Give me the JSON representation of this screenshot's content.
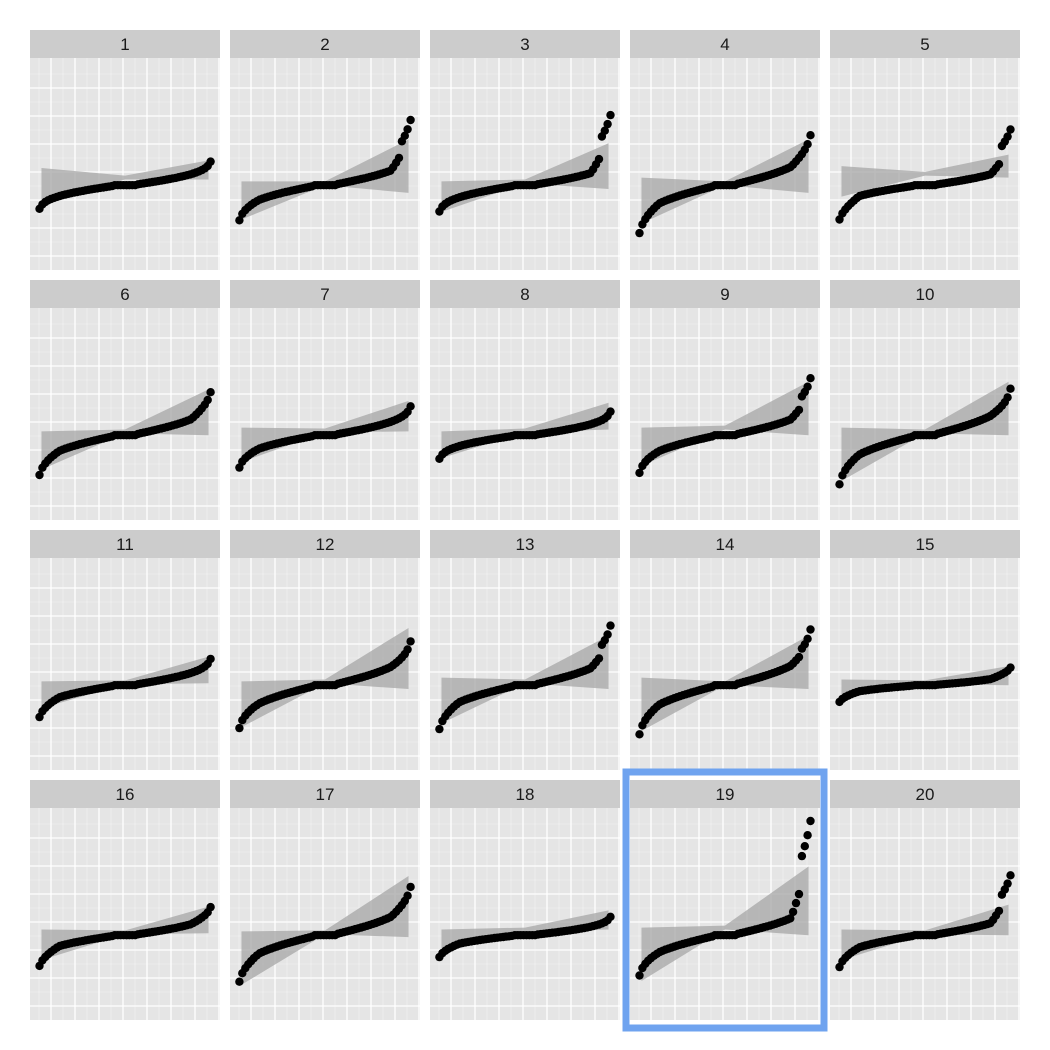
{
  "highlight_color": "#6fa3ef",
  "panel_background": "#e5e5e5",
  "strip_background": "#cccccc",
  "grid_color": "#ffffff",
  "point_color": "#000000",
  "band_color": "#a6a6a6",
  "highlighted_panel": "19",
  "chart_data": [
    {
      "panel": "1",
      "type": "scatter",
      "pattern": "qq",
      "slope": 0.45,
      "tail_lo": 0,
      "tail_hi": 0,
      "jump_hi": 0,
      "band_center": [
        0,
        0.08
      ],
      "band_half": [
        0.09,
        0.05
      ]
    },
    {
      "panel": "2",
      "type": "scatter",
      "pattern": "qq",
      "slope": 0.6,
      "tail_lo": 0.05,
      "tail_hi": 0.25,
      "jump_hi": 0.12,
      "band_center": [
        -0.08,
        0.1
      ],
      "band_half": [
        0.1,
        0.14
      ]
    },
    {
      "panel": "3",
      "type": "scatter",
      "pattern": "qq",
      "slope": 0.5,
      "tail_lo": 0,
      "tail_hi": 0.3,
      "jump_hi": 0.18,
      "band_center": [
        -0.06,
        0.1
      ],
      "band_half": [
        0.08,
        0.12
      ]
    },
    {
      "panel": "4",
      "type": "scatter",
      "pattern": "qq",
      "slope": 0.75,
      "tail_lo": 0.12,
      "tail_hi": 0.12,
      "jump_hi": 0,
      "band_center": [
        -0.08,
        0.1
      ],
      "band_half": [
        0.12,
        0.14
      ]
    },
    {
      "panel": "5",
      "type": "scatter",
      "pattern": "qq",
      "slope": 0.45,
      "tail_lo": 0.15,
      "tail_hi": 0.2,
      "jump_hi": 0.15,
      "band_center": [
        0.02,
        0.1
      ],
      "band_half": [
        0.08,
        0.06
      ]
    },
    {
      "panel": "6",
      "type": "scatter",
      "pattern": "qq",
      "slope": 0.65,
      "tail_lo": 0.08,
      "tail_hi": 0.1,
      "jump_hi": 0,
      "band_center": [
        -0.08,
        0.12
      ],
      "band_half": [
        0.1,
        0.12
      ]
    },
    {
      "panel": "7",
      "type": "scatter",
      "pattern": "qq",
      "slope": 0.55,
      "tail_lo": 0.05,
      "tail_hi": 0,
      "jump_hi": 0,
      "band_center": [
        -0.05,
        0.1
      ],
      "band_half": [
        0.09,
        0.08
      ]
    },
    {
      "panel": "8",
      "type": "scatter",
      "pattern": "qq",
      "slope": 0.45,
      "tail_lo": 0,
      "tail_hi": 0,
      "jump_hi": 0,
      "band_center": [
        -0.05,
        0.1
      ],
      "band_half": [
        0.07,
        0.07
      ]
    },
    {
      "panel": "9",
      "type": "scatter",
      "pattern": "qq",
      "slope": 0.65,
      "tail_lo": 0.05,
      "tail_hi": 0.15,
      "jump_hi": 0.1,
      "band_center": [
        -0.06,
        0.14
      ],
      "band_half": [
        0.1,
        0.14
      ]
    },
    {
      "panel": "10",
      "type": "scatter",
      "pattern": "qq",
      "slope": 0.8,
      "tail_lo": 0.1,
      "tail_hi": 0.05,
      "jump_hi": 0,
      "band_center": [
        -0.1,
        0.14
      ],
      "band_half": [
        0.14,
        0.14
      ]
    },
    {
      "panel": "11",
      "type": "scatter",
      "pattern": "qq",
      "slope": 0.5,
      "tail_lo": 0.08,
      "tail_hi": 0,
      "jump_hi": 0,
      "band_center": [
        -0.05,
        0.08
      ],
      "band_half": [
        0.07,
        0.07
      ]
    },
    {
      "panel": "12",
      "type": "scatter",
      "pattern": "qq",
      "slope": 0.75,
      "tail_lo": 0.05,
      "tail_hi": 0.05,
      "jump_hi": 0,
      "band_center": [
        -0.1,
        0.14
      ],
      "band_half": [
        0.12,
        0.16
      ]
    },
    {
      "panel": "13",
      "type": "scatter",
      "pattern": "qq",
      "slope": 0.7,
      "tail_lo": 0.1,
      "tail_hi": 0.15,
      "jump_hi": 0.1,
      "band_center": [
        -0.08,
        0.12
      ],
      "band_half": [
        0.12,
        0.14
      ]
    },
    {
      "panel": "14",
      "type": "scatter",
      "pattern": "qq",
      "slope": 0.8,
      "tail_lo": 0.1,
      "tail_hi": 0.1,
      "jump_hi": 0.05,
      "band_center": [
        -0.1,
        0.12
      ],
      "band_half": [
        0.14,
        0.14
      ]
    },
    {
      "panel": "15",
      "type": "scatter",
      "pattern": "qq",
      "slope": 0.25,
      "tail_lo": 0.05,
      "tail_hi": 0.05,
      "jump_hi": 0,
      "band_center": [
        -0.02,
        0.05
      ],
      "band_half": [
        0.05,
        0.05
      ]
    },
    {
      "panel": "16",
      "type": "scatter",
      "pattern": "qq",
      "slope": 0.45,
      "tail_lo": 0.1,
      "tail_hi": 0.05,
      "jump_hi": 0,
      "band_center": [
        -0.05,
        0.08
      ],
      "band_half": [
        0.08,
        0.07
      ]
    },
    {
      "panel": "17",
      "type": "scatter",
      "pattern": "qq",
      "slope": 0.75,
      "tail_lo": 0.1,
      "tail_hi": 0.1,
      "jump_hi": 0,
      "band_center": [
        -0.12,
        0.15
      ],
      "band_half": [
        0.14,
        0.16
      ]
    },
    {
      "panel": "18",
      "type": "scatter",
      "pattern": "qq",
      "slope": 0.35,
      "tail_lo": 0.05,
      "tail_hi": 0,
      "jump_hi": 0,
      "band_center": [
        -0.02,
        0.08
      ],
      "band_half": [
        0.05,
        0.05
      ]
    },
    {
      "panel": "19",
      "type": "scatter",
      "pattern": "qq",
      "slope": 0.7,
      "tail_lo": 0.05,
      "tail_hi": 0.55,
      "jump_hi": 0.3,
      "band_center": [
        -0.1,
        0.18
      ],
      "band_half": [
        0.14,
        0.18
      ]
    },
    {
      "panel": "20",
      "type": "scatter",
      "pattern": "qq",
      "slope": 0.5,
      "tail_lo": 0.08,
      "tail_hi": 0.25,
      "jump_hi": 0.12,
      "band_center": [
        -0.05,
        0.08
      ],
      "band_half": [
        0.08,
        0.08
      ]
    }
  ]
}
